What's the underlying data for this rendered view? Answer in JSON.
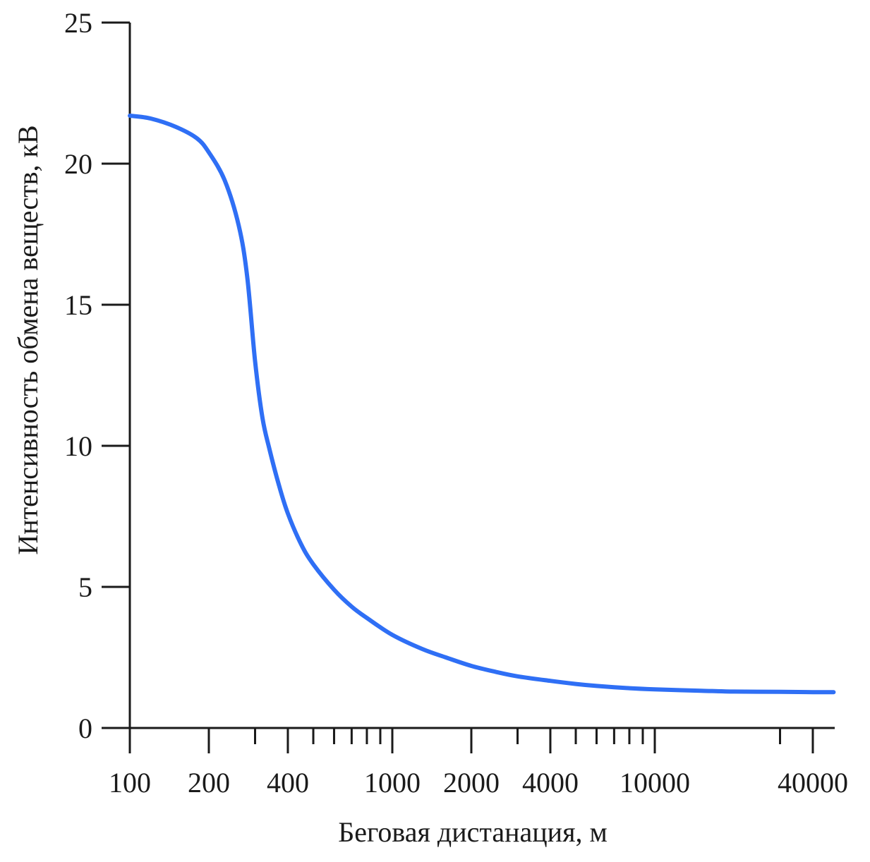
{
  "chart_data": {
    "type": "line",
    "xlabel": "Беговая дистанация, м",
    "ylabel": "Интенсивность обмена веществ, кВ",
    "x_scale": "log",
    "xlim": [
      100,
      50000
    ],
    "ylim": [
      0,
      25
    ],
    "y_ticks": [
      0,
      5,
      10,
      15,
      20,
      25
    ],
    "x_tick_labels": [
      100,
      200,
      400,
      1000,
      2000,
      4000,
      10000,
      40000
    ],
    "x_minor_ticks": [
      300,
      500,
      600,
      700,
      800,
      900,
      3000,
      5000,
      6000,
      7000,
      8000,
      9000,
      30000
    ],
    "grid": false,
    "series": [
      {
        "color": "#2f6ff5",
        "x": [
          100,
          120,
          150,
          180,
          200,
          230,
          260,
          280,
          300,
          320,
          340,
          370,
          400,
          450,
          500,
          600,
          700,
          800,
          1000,
          1300,
          1600,
          2000,
          2500,
          3000,
          4000,
          5000,
          6000,
          8000,
          10000,
          15000,
          20000,
          30000,
          40000,
          48000
        ],
        "y": [
          21.7,
          21.6,
          21.3,
          20.9,
          20.4,
          19.4,
          17.8,
          16.0,
          13.0,
          11.0,
          9.9,
          8.6,
          7.6,
          6.5,
          5.8,
          4.9,
          4.3,
          3.9,
          3.3,
          2.8,
          2.5,
          2.2,
          1.98,
          1.83,
          1.67,
          1.56,
          1.49,
          1.41,
          1.37,
          1.32,
          1.29,
          1.28,
          1.27,
          1.27
        ]
      }
    ]
  }
}
